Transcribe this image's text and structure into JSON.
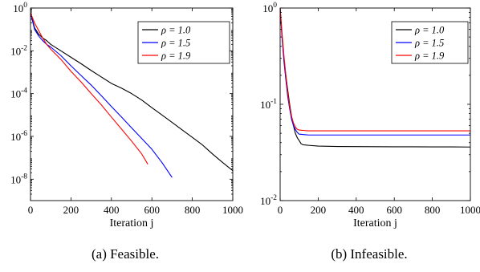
{
  "chart_data": [
    {
      "type": "line",
      "subplot_id": "feasible",
      "caption": "(a) Feasible.",
      "xlabel": "Iteration j",
      "ylabel": "",
      "xlim": [
        0,
        1000
      ],
      "ylim": [
        1e-09,
        1
      ],
      "yscale": "log",
      "grid": false,
      "legend_position": "top-right",
      "x_ticks": [
        "0",
        "200",
        "400",
        "600",
        "800",
        "1000"
      ],
      "y_ticks": [
        {
          "base": "10",
          "exp": "0"
        },
        {
          "base": "10",
          "exp": "-2"
        },
        {
          "base": "10",
          "exp": "-4"
        },
        {
          "base": "10",
          "exp": "-6"
        },
        {
          "base": "10",
          "exp": "-8"
        }
      ],
      "series": [
        {
          "name": "ρ = 1.0",
          "color": "#000000",
          "x": [
            0,
            20,
            40,
            60,
            80,
            100,
            150,
            200,
            250,
            300,
            350,
            400,
            450,
            500,
            550,
            600,
            650,
            700,
            750,
            800,
            850,
            900,
            950,
            1000
          ],
          "y": [
            0.6,
            0.12,
            0.06,
            0.04,
            0.03,
            0.02,
            0.01,
            0.005,
            0.0025,
            0.0012,
            0.0006,
            0.0003,
            0.00018,
            0.0001,
            5e-05,
            2.2e-05,
            1e-05,
            4.5e-06,
            2e-06,
            9e-07,
            4e-07,
            1.5e-07,
            6e-08,
            2.5e-08
          ]
        },
        {
          "name": "ρ = 1.5",
          "color": "#0000ff",
          "x": [
            0,
            20,
            40,
            60,
            80,
            100,
            150,
            200,
            250,
            300,
            350,
            400,
            450,
            500,
            550,
            600,
            650,
            700
          ],
          "y": [
            0.6,
            0.1,
            0.05,
            0.03,
            0.02,
            0.015,
            0.006,
            0.002,
            0.0007,
            0.00025,
            8e-05,
            2.5e-05,
            8e-06,
            2.5e-06,
            8e-07,
            2.5e-07,
            6e-08,
            1.2e-08
          ]
        },
        {
          "name": "ρ = 1.9",
          "color": "#ff0000",
          "x": [
            0,
            20,
            40,
            60,
            80,
            100,
            150,
            200,
            250,
            300,
            350,
            400,
            450,
            500,
            550,
            580
          ],
          "y": [
            0.6,
            0.2,
            0.09,
            0.04,
            0.02,
            0.012,
            0.004,
            0.0011,
            0.00035,
            0.0001,
            3e-05,
            8e-06,
            2.2e-06,
            6e-07,
            1.5e-07,
            5e-08
          ]
        }
      ]
    },
    {
      "type": "line",
      "subplot_id": "infeasible",
      "caption": "(b) Infeasible.",
      "xlabel": "Iteration j",
      "ylabel": "",
      "xlim": [
        0,
        1000
      ],
      "ylim": [
        0.01,
        1
      ],
      "yscale": "log",
      "grid": false,
      "legend_position": "top-right",
      "x_ticks": [
        "0",
        "200",
        "400",
        "600",
        "800",
        "1000"
      ],
      "y_ticks": [
        {
          "base": "10",
          "exp": "0"
        },
        {
          "base": "10",
          "exp": "-1"
        },
        {
          "base": "10",
          "exp": "-2"
        }
      ],
      "series": [
        {
          "name": "ρ = 1.0",
          "color": "#000000",
          "x": [
            0,
            10,
            20,
            30,
            40,
            50,
            60,
            70,
            80,
            90,
            100,
            110,
            120,
            150,
            200,
            300,
            400,
            500,
            600,
            700,
            800,
            900,
            1000
          ],
          "y": [
            1.0,
            0.5,
            0.3,
            0.2,
            0.14,
            0.1,
            0.075,
            0.06,
            0.05,
            0.045,
            0.042,
            0.039,
            0.038,
            0.0375,
            0.0368,
            0.0365,
            0.0364,
            0.0363,
            0.0362,
            0.0362,
            0.0361,
            0.0361,
            0.036
          ]
        },
        {
          "name": "ρ = 1.5",
          "color": "#0000ff",
          "x": [
            0,
            10,
            20,
            30,
            40,
            50,
            60,
            70,
            80,
            90,
            100,
            150,
            200,
            300,
            400,
            500,
            600,
            700,
            800,
            900,
            1000
          ],
          "y": [
            1.0,
            0.5,
            0.28,
            0.18,
            0.12,
            0.09,
            0.07,
            0.06,
            0.055,
            0.051,
            0.049,
            0.048,
            0.048,
            0.048,
            0.048,
            0.048,
            0.048,
            0.048,
            0.048,
            0.048,
            0.048
          ]
        },
        {
          "name": "ρ = 1.9",
          "color": "#ff0000",
          "x": [
            0,
            10,
            20,
            30,
            40,
            50,
            60,
            70,
            80,
            90,
            100,
            150,
            200,
            300,
            400,
            500,
            600,
            700,
            800,
            900,
            1000
          ],
          "y": [
            1.0,
            0.55,
            0.32,
            0.2,
            0.13,
            0.095,
            0.075,
            0.064,
            0.058,
            0.055,
            0.054,
            0.053,
            0.053,
            0.053,
            0.053,
            0.053,
            0.053,
            0.053,
            0.053,
            0.053,
            0.053
          ]
        }
      ]
    }
  ]
}
